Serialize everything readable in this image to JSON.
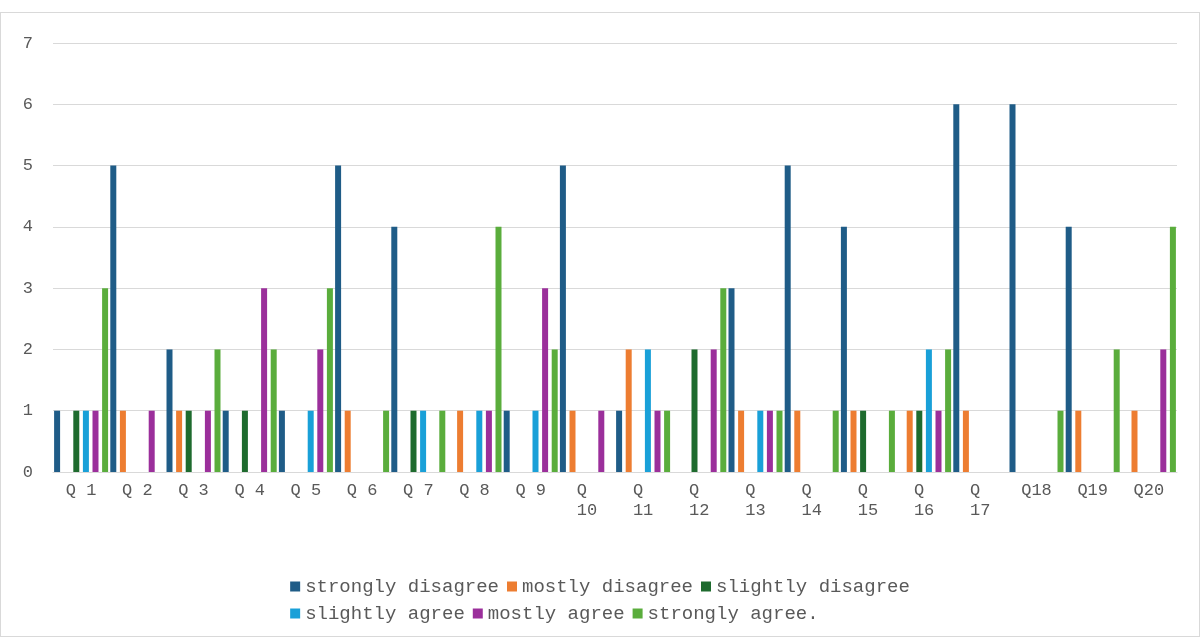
{
  "chart_data": {
    "type": "bar",
    "categories": [
      "Q 1",
      "Q 2",
      "Q 3",
      "Q 4",
      "Q 5",
      "Q 6",
      "Q 7",
      "Q 8",
      "Q 9",
      "Q 10",
      "Q 11",
      "Q 12",
      "Q 13",
      "Q 14",
      "Q 15",
      "Q 16",
      "Q 17",
      "Q18",
      "Q19",
      "Q20"
    ],
    "series": [
      {
        "name": "strongly disagree",
        "color": "#1f5c87",
        "values": [
          1,
          5,
          2,
          1,
          1,
          5,
          4,
          0,
          1,
          5,
          1,
          0,
          3,
          5,
          4,
          0,
          6,
          6,
          4,
          0
        ]
      },
      {
        "name": "mostly disagree",
        "color": "#ed7d31",
        "values": [
          0,
          1,
          1,
          0,
          0,
          1,
          0,
          1,
          0,
          1,
          2,
          0,
          1,
          1,
          1,
          1,
          1,
          0,
          1,
          1
        ]
      },
      {
        "name": "slightly disagree",
        "color": "#1e6b2e",
        "values": [
          1,
          0,
          1,
          1,
          0,
          0,
          1,
          0,
          0,
          0,
          0,
          2,
          0,
          0,
          1,
          1,
          0,
          0,
          0,
          0
        ]
      },
      {
        "name": "slightly agree",
        "color": "#19a0d8",
        "values": [
          1,
          0,
          0,
          0,
          1,
          0,
          1,
          1,
          1,
          0,
          2,
          0,
          1,
          0,
          0,
          2,
          0,
          0,
          0,
          0
        ]
      },
      {
        "name": "mostly agree",
        "color": "#9b2f9b",
        "values": [
          1,
          1,
          1,
          3,
          2,
          0,
          0,
          1,
          3,
          1,
          1,
          2,
          1,
          0,
          0,
          1,
          0,
          0,
          0,
          2
        ]
      },
      {
        "name": "strongly agree.",
        "color": "#5aad3c",
        "values": [
          3,
          0,
          2,
          2,
          3,
          1,
          1,
          4,
          2,
          0,
          1,
          3,
          1,
          1,
          1,
          2,
          0,
          1,
          2,
          4
        ]
      }
    ],
    "ylim": [
      0,
      7
    ],
    "yticks": [
      0,
      1,
      2,
      3,
      4,
      5,
      6,
      7
    ],
    "grid": "y",
    "legend": "bottom"
  }
}
